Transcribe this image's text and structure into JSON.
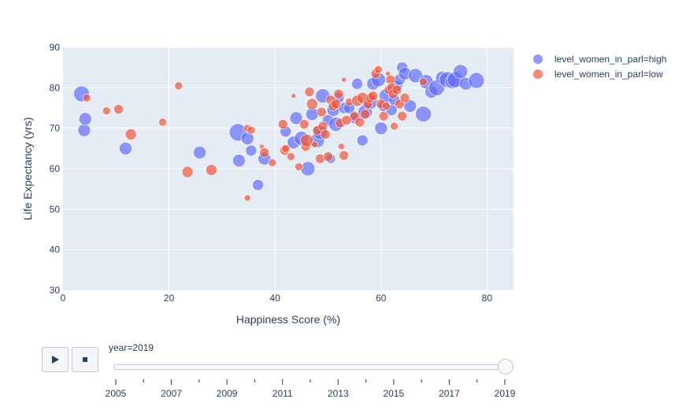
{
  "chart_data": {
    "type": "scatter",
    "xlabel": "Happiness Score (%)",
    "ylabel": "Life Expectancy (yrs)",
    "xlim": [
      0,
      85
    ],
    "ylim": [
      30,
      90
    ],
    "x_ticks": [
      0,
      20,
      40,
      60,
      80
    ],
    "y_ticks": [
      30,
      40,
      50,
      60,
      70,
      80,
      90
    ],
    "grid": true,
    "legend_position": "top-right",
    "series": [
      {
        "name": "level_women_in_parl=high",
        "color": "#636efa",
        "points": [
          [
            3.5,
            78.5,
            10
          ],
          [
            4,
            69.5,
            8
          ],
          [
            4.2,
            72.3,
            8
          ],
          [
            11.8,
            65,
            8
          ],
          [
            25.8,
            64,
            8
          ],
          [
            33,
            69,
            11
          ],
          [
            33.2,
            62,
            8
          ],
          [
            34.8,
            67.5,
            8
          ],
          [
            35.5,
            64.5,
            7
          ],
          [
            36.8,
            56,
            7
          ],
          [
            38,
            62.5,
            8
          ],
          [
            42,
            69.2,
            7
          ],
          [
            43.5,
            66.5,
            8
          ],
          [
            44,
            72.5,
            8
          ],
          [
            45,
            67.5,
            9
          ],
          [
            46.2,
            60,
            9
          ],
          [
            47,
            73.5,
            8
          ],
          [
            48,
            67,
            9
          ],
          [
            48.5,
            69,
            9
          ],
          [
            49,
            78,
            9
          ],
          [
            50,
            72,
            7
          ],
          [
            50.5,
            62.5,
            6
          ],
          [
            51,
            74.5,
            8
          ],
          [
            51.5,
            71,
            9
          ],
          [
            52,
            77.5,
            7
          ],
          [
            53,
            75,
            7
          ],
          [
            54,
            75,
            7
          ],
          [
            55,
            72.5,
            7
          ],
          [
            55.5,
            81,
            7
          ],
          [
            56.5,
            67,
            7
          ],
          [
            57,
            74,
            9
          ],
          [
            58,
            76.5,
            9
          ],
          [
            58.5,
            81,
            8
          ],
          [
            59.5,
            82,
            9
          ],
          [
            60,
            70,
            8
          ],
          [
            60.5,
            75.5,
            7
          ],
          [
            61,
            78,
            9
          ],
          [
            62,
            74.5,
            7
          ],
          [
            62.5,
            77,
            7
          ],
          [
            63,
            80.5,
            7
          ],
          [
            63.5,
            82,
            7
          ],
          [
            64,
            85,
            7
          ],
          [
            64.5,
            83.5,
            8
          ],
          [
            65.5,
            75.5,
            8
          ],
          [
            66.5,
            83,
            9
          ],
          [
            68,
            73.5,
            10
          ],
          [
            68.5,
            81.5,
            9
          ],
          [
            69.5,
            79,
            8
          ],
          [
            70.5,
            80,
            10
          ],
          [
            71.5,
            82.5,
            8
          ],
          [
            72.5,
            82,
            10
          ],
          [
            73.5,
            81.5,
            9
          ],
          [
            74,
            82,
            10
          ],
          [
            75,
            84,
            9
          ],
          [
            76,
            81,
            8
          ],
          [
            78,
            81.8,
            10
          ]
        ]
      },
      {
        "name": "level_women_in_parl=low",
        "color": "#ef553b",
        "points": [
          [
            4.5,
            77.5,
            5
          ],
          [
            8.2,
            74.3,
            5
          ],
          [
            10.5,
            74.7,
            6
          ],
          [
            12.8,
            68.5,
            7
          ],
          [
            18.8,
            71.5,
            5
          ],
          [
            21.8,
            80.5,
            5
          ],
          [
            23.5,
            59.2,
            7
          ],
          [
            28,
            59.7,
            7
          ],
          [
            34.8,
            70,
            5
          ],
          [
            34.8,
            52.8,
            4
          ],
          [
            35.5,
            69.5,
            5
          ],
          [
            37.5,
            65.5,
            3
          ],
          [
            38,
            64,
            6
          ],
          [
            39.5,
            61.5,
            5
          ],
          [
            41.5,
            71,
            6
          ],
          [
            41.8,
            64.5,
            6
          ],
          [
            42,
            65,
            5
          ],
          [
            43,
            63,
            5
          ],
          [
            43.5,
            78,
            3
          ],
          [
            44.5,
            60.5,
            5
          ],
          [
            45.5,
            71,
            6
          ],
          [
            45.8,
            65.5,
            6
          ],
          [
            46,
            67,
            8
          ],
          [
            46.5,
            79,
            6
          ],
          [
            47,
            76,
            7
          ],
          [
            47.5,
            66,
            4
          ],
          [
            48,
            69.5,
            6
          ],
          [
            48.5,
            62.5,
            6
          ],
          [
            48.8,
            74,
            6
          ],
          [
            49,
            70.5,
            6
          ],
          [
            49.5,
            68.5,
            6
          ],
          [
            50,
            63,
            6
          ],
          [
            50.5,
            77,
            6
          ],
          [
            51,
            75.5,
            6
          ],
          [
            51.5,
            76,
            6
          ],
          [
            52,
            78.5,
            6
          ],
          [
            52.3,
            71.3,
            6
          ],
          [
            52.5,
            65.5,
            4
          ],
          [
            53,
            82,
            3
          ],
          [
            53,
            63.3,
            6
          ],
          [
            53.5,
            72,
            6
          ],
          [
            54,
            76.5,
            5
          ],
          [
            55,
            73,
            6
          ],
          [
            55.5,
            76.8,
            7
          ],
          [
            56,
            71.5,
            6
          ],
          [
            56.5,
            77.5,
            7
          ],
          [
            57,
            73.5,
            6
          ],
          [
            57.5,
            76,
            6
          ],
          [
            58,
            77.5,
            6
          ],
          [
            58.5,
            78,
            6
          ],
          [
            59,
            83.5,
            6
          ],
          [
            59.5,
            84.5,
            5
          ],
          [
            60,
            76,
            6
          ],
          [
            60.5,
            73,
            6
          ],
          [
            61,
            75.5,
            5
          ],
          [
            61.3,
            83.5,
            3
          ],
          [
            61.5,
            79.5,
            6
          ],
          [
            61.8,
            82,
            6
          ],
          [
            62,
            80,
            6
          ],
          [
            62.3,
            78.5,
            6
          ],
          [
            62.5,
            70.5,
            5
          ],
          [
            63,
            79.5,
            6
          ],
          [
            63.5,
            76,
            6
          ],
          [
            64,
            73,
            6
          ],
          [
            64.5,
            77.5,
            6
          ],
          [
            68,
            81.5,
            5
          ]
        ]
      }
    ],
    "slider": {
      "label_prefix": "year=",
      "current": "2019",
      "ticks": [
        "2005",
        "2007",
        "2009",
        "2011",
        "2013",
        "2015",
        "2017",
        "2019"
      ]
    }
  },
  "controls": {
    "play_icon": "play-icon",
    "stop_icon": "stop-icon"
  }
}
